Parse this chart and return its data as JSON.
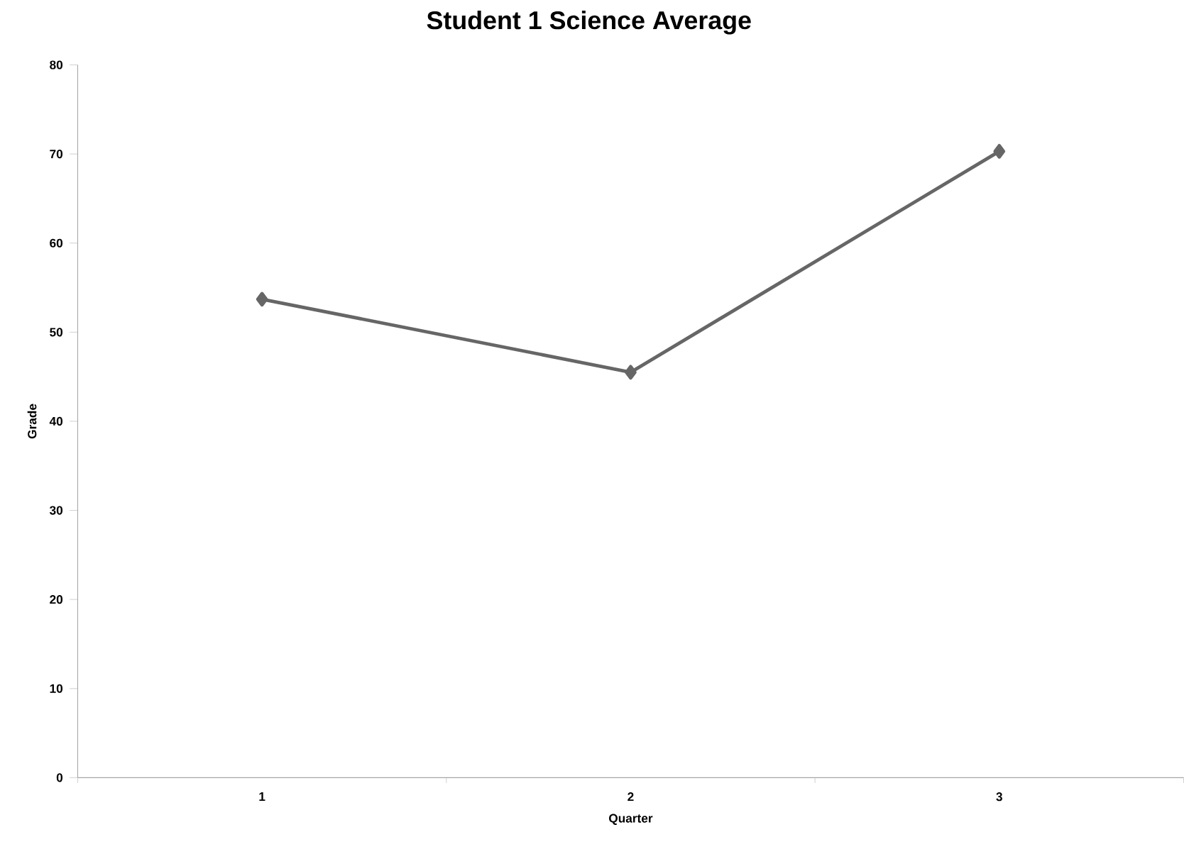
{
  "chart_data": {
    "type": "line",
    "title": "Student 1 Science Average",
    "xlabel": "Quarter",
    "ylabel": "Grade",
    "categories": [
      "1",
      "2",
      "3"
    ],
    "series": [
      {
        "color": "#666666",
        "values": [
          53.7,
          45.5,
          70.3
        ]
      }
    ],
    "ylim": [
      0,
      80
    ],
    "yticks": [
      0,
      10,
      20,
      30,
      40,
      50,
      60,
      70,
      80
    ],
    "marker": "diamond",
    "line_style": "solid"
  }
}
